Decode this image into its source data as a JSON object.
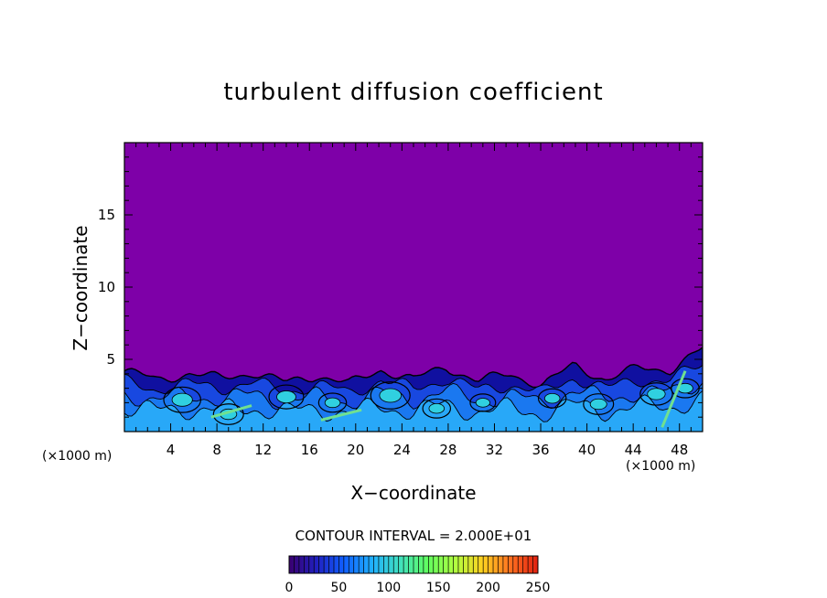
{
  "chart_data": {
    "type": "heatmap",
    "title": "turbulent diffusion coefficient",
    "xlabel": "X−coordinate",
    "ylabel": "Z−coordinate",
    "x_unit": "(×1000 m)",
    "xlim": [
      0,
      50
    ],
    "ylim": [
      0,
      20
    ],
    "x_ticks": [
      4,
      8,
      12,
      16,
      20,
      24,
      28,
      32,
      36,
      40,
      44,
      48
    ],
    "y_ticks": [
      5,
      10,
      15
    ],
    "contour_interval_text": "CONTOUR INTERVAL = 2.000E+01",
    "colorbar": {
      "min": 0,
      "max": 250,
      "ticks": [
        0,
        50,
        100,
        150,
        200,
        250
      ],
      "colors": [
        "#3a0070",
        "#2020c0",
        "#1060ff",
        "#20b0ff",
        "#40e0c0",
        "#60ff60",
        "#b0ff40",
        "#ffd020",
        "#ff7020",
        "#e02010"
      ]
    },
    "background_value": 0,
    "background_color": "#7e00a8",
    "boundary_layer_top_km": [
      4.2,
      3.6,
      4.0,
      3.7,
      4.1,
      3.4,
      3.9,
      3.3,
      4.3,
      3.6,
      4.5,
      3.5,
      4.0,
      3.2,
      4.6,
      3.6,
      4.4,
      4.3,
      5.7
    ]
  }
}
